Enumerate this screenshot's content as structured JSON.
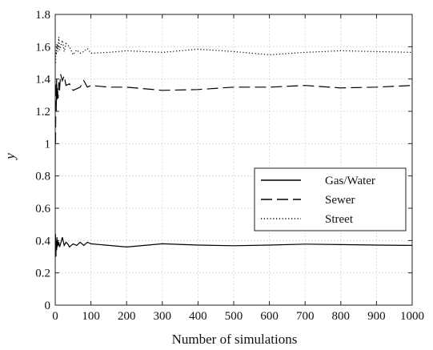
{
  "chart_data": {
    "type": "line",
    "title": "",
    "xlabel": "Number of simulations",
    "ylabel": "y",
    "xlim": [
      0,
      1000
    ],
    "ylim": [
      0,
      1.8
    ],
    "xticks": [
      0,
      100,
      200,
      300,
      400,
      500,
      600,
      700,
      800,
      900,
      1000
    ],
    "yticks": [
      0,
      0.2,
      0.4,
      0.6,
      0.8,
      1,
      1.2,
      1.4,
      1.6,
      1.8
    ],
    "grid": true,
    "legend_position": "right",
    "series": [
      {
        "name": "Gas/Water",
        "style": "solid",
        "color": "#000000",
        "x": [
          1,
          2,
          3,
          4,
          5,
          6,
          7,
          8,
          10,
          12,
          15,
          20,
          25,
          30,
          35,
          40,
          50,
          60,
          70,
          80,
          90,
          100,
          150,
          200,
          300,
          400,
          500,
          600,
          700,
          800,
          900,
          1000
        ],
        "y": [
          0.44,
          0.3,
          0.4,
          0.34,
          0.42,
          0.36,
          0.4,
          0.37,
          0.39,
          0.36,
          0.38,
          0.42,
          0.37,
          0.39,
          0.38,
          0.36,
          0.38,
          0.37,
          0.39,
          0.37,
          0.39,
          0.38,
          0.37,
          0.36,
          0.38,
          0.372,
          0.368,
          0.372,
          0.378,
          0.375,
          0.372,
          0.37
        ]
      },
      {
        "name": "Sewer",
        "style": "dashed",
        "color": "#000000",
        "x": [
          1,
          2,
          3,
          4,
          5,
          6,
          8,
          10,
          12,
          15,
          20,
          25,
          30,
          40,
          50,
          60,
          70,
          80,
          90,
          100,
          150,
          200,
          300,
          400,
          500,
          600,
          700,
          800,
          900,
          1000
        ],
        "y": [
          1.0,
          1.38,
          1.2,
          1.4,
          1.27,
          1.35,
          1.28,
          1.38,
          1.33,
          1.43,
          1.39,
          1.42,
          1.36,
          1.37,
          1.33,
          1.34,
          1.35,
          1.39,
          1.35,
          1.36,
          1.35,
          1.35,
          1.33,
          1.335,
          1.35,
          1.35,
          1.36,
          1.345,
          1.35,
          1.36
        ]
      },
      {
        "name": "Street",
        "style": "dotted",
        "color": "#000000",
        "x": [
          1,
          2,
          3,
          5,
          7,
          10,
          12,
          15,
          20,
          25,
          30,
          40,
          50,
          60,
          70,
          80,
          90,
          100,
          150,
          200,
          300,
          400,
          500,
          600,
          700,
          800,
          900,
          1000
        ],
        "y": [
          1.5,
          1.58,
          1.55,
          1.62,
          1.57,
          1.66,
          1.58,
          1.6,
          1.64,
          1.57,
          1.62,
          1.6,
          1.55,
          1.58,
          1.56,
          1.57,
          1.59,
          1.56,
          1.565,
          1.575,
          1.565,
          1.585,
          1.57,
          1.55,
          1.565,
          1.575,
          1.57,
          1.565
        ]
      }
    ]
  }
}
